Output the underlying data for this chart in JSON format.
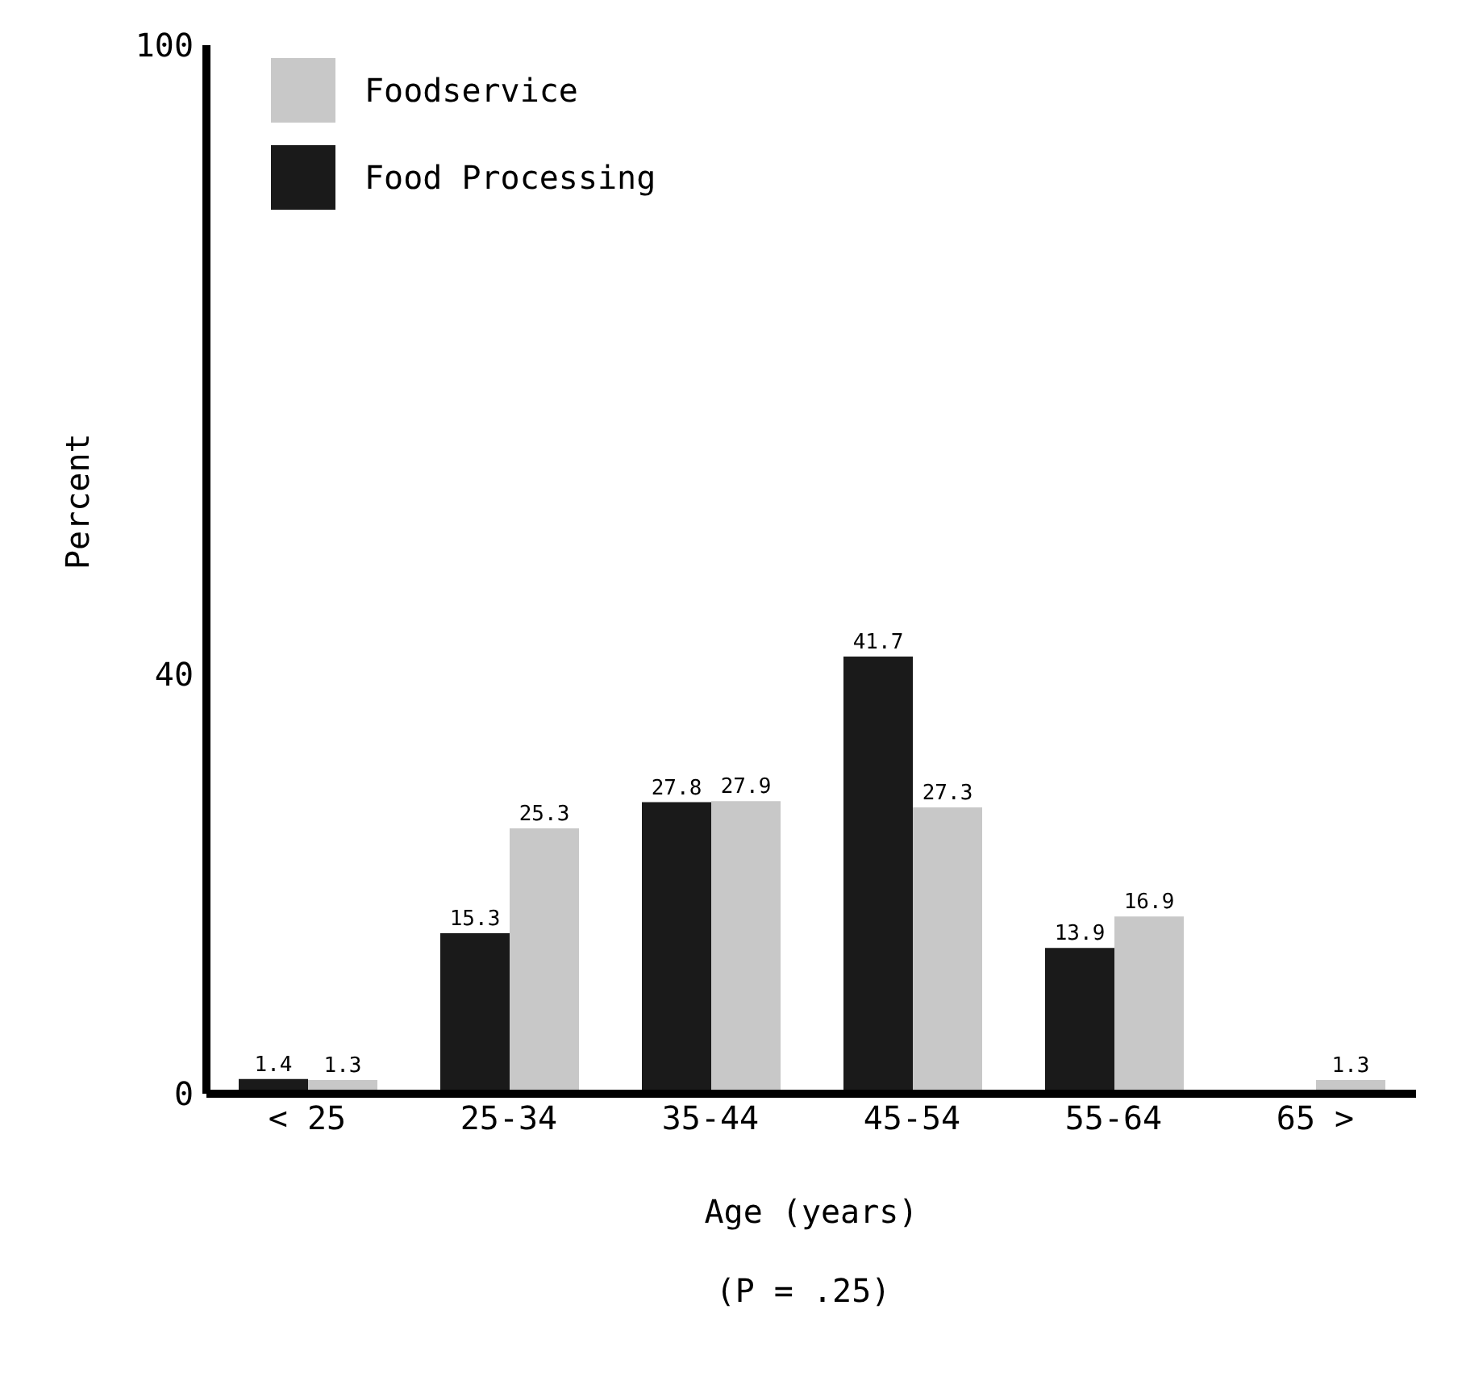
{
  "chart_data": {
    "type": "bar",
    "categories": [
      "< 25",
      "25-34",
      "35-44",
      "45-54",
      "55-64",
      "65 >"
    ],
    "series": [
      {
        "name": "Food Processing",
        "color": "#1a1a1a",
        "values": [
          1.4,
          15.3,
          27.8,
          41.7,
          13.9,
          null
        ]
      },
      {
        "name": "Foodservice",
        "color": "#c8c8c8",
        "values": [
          1.3,
          25.3,
          27.9,
          27.3,
          16.9,
          1.3
        ]
      }
    ],
    "xlabel": "Age (years)",
    "ylabel": "Percent",
    "annotations": [
      "(P = .25)"
    ],
    "ylim": [
      0,
      100
    ],
    "yticks": [
      0,
      40,
      100
    ],
    "data_labels": true,
    "grid": false,
    "legend": "top left"
  }
}
